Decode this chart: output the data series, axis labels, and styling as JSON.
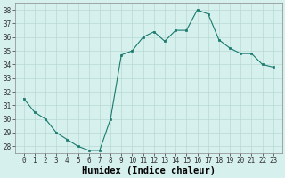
{
  "x": [
    0,
    1,
    2,
    3,
    4,
    5,
    6,
    7,
    8,
    9,
    10,
    11,
    12,
    13,
    14,
    15,
    16,
    17,
    18,
    19,
    20,
    21,
    22,
    23
  ],
  "y": [
    31.5,
    30.5,
    30.0,
    29.0,
    28.5,
    28.0,
    27.7,
    27.7,
    30.0,
    34.7,
    35.0,
    36.0,
    36.4,
    35.7,
    36.5,
    36.5,
    38.0,
    37.7,
    35.8,
    35.2,
    34.8,
    34.8,
    34.0,
    33.8
  ],
  "line_color": "#1a7a6e",
  "marker": "s",
  "marker_size": 1.8,
  "bg_color": "#d6f0ee",
  "grid_color": "#b8d8d4",
  "xlabel": "Humidex (Indice chaleur)",
  "xlabel_fontsize": 7.5,
  "ylim": [
    27.5,
    38.5
  ],
  "yticks": [
    28,
    29,
    30,
    31,
    32,
    33,
    34,
    35,
    36,
    37,
    38
  ],
  "xticks": [
    0,
    1,
    2,
    3,
    4,
    5,
    6,
    7,
    8,
    9,
    10,
    11,
    12,
    13,
    14,
    15,
    16,
    17,
    18,
    19,
    20,
    21,
    22,
    23
  ],
  "tick_fontsize": 5.5,
  "line_width": 0.8,
  "spine_color": "#888888"
}
